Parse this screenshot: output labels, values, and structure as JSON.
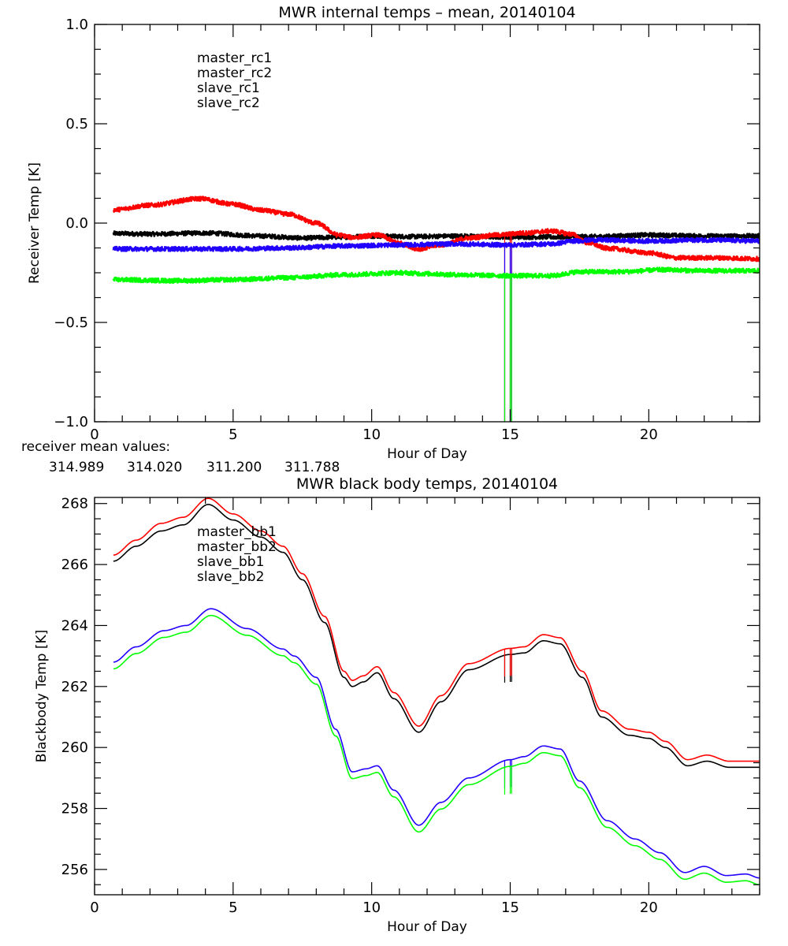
{
  "chart_data": [
    {
      "type": "line",
      "title": "MWR internal temps – mean, 20140104",
      "xlabel": "Hour of Day",
      "ylabel": "Receiver Temp [K]",
      "xlim": [
        0,
        24
      ],
      "ylim": [
        -1.0,
        1.0
      ],
      "xticks": [
        0,
        5,
        10,
        15,
        20
      ],
      "xtick_labels": [
        "0",
        "5",
        "10",
        "15",
        "20"
      ],
      "yticks": [
        1.0,
        0.5,
        0.0,
        -0.5,
        -1.0
      ],
      "ytick_labels": [
        "1.0",
        "0.5",
        "0.0",
        "−0.5",
        "−1.0"
      ],
      "grid": false,
      "legend_position": "top-left",
      "noisy": true,
      "series": [
        {
          "name": "master_rc1",
          "color": "#000000",
          "x": [
            0.68,
            2,
            4,
            6,
            7.5,
            9,
            10,
            11.5,
            13,
            15,
            16.5,
            18,
            20,
            22,
            24
          ],
          "y": [
            -0.052,
            -0.055,
            -0.05,
            -0.065,
            -0.075,
            -0.07,
            -0.065,
            -0.068,
            -0.065,
            -0.07,
            -0.07,
            -0.068,
            -0.06,
            -0.065,
            -0.065
          ]
        },
        {
          "name": "master_rc2",
          "color": "#ff0000",
          "x": [
            0.68,
            2,
            3.8,
            5,
            6,
            7,
            8,
            8.8,
            9.3,
            10.2,
            11,
            11.7,
            12.5,
            13.5,
            14.5,
            15.5,
            16.5,
            17.2,
            17.8,
            18.5,
            20,
            21,
            22.5,
            24
          ],
          "y": [
            0.067,
            0.09,
            0.123,
            0.095,
            0.065,
            0.045,
            0.0,
            -0.06,
            -0.072,
            -0.06,
            -0.1,
            -0.13,
            -0.11,
            -0.075,
            -0.06,
            -0.05,
            -0.04,
            -0.055,
            -0.1,
            -0.127,
            -0.15,
            -0.175,
            -0.175,
            -0.18
          ]
        },
        {
          "name": "slave_rc1",
          "color": "#2200ff",
          "x": [
            0.68,
            3,
            5,
            7,
            9,
            11,
            13,
            15,
            16.5,
            17.3,
            18,
            20,
            22,
            24
          ],
          "y": [
            -0.13,
            -0.13,
            -0.13,
            -0.125,
            -0.115,
            -0.11,
            -0.105,
            -0.11,
            -0.105,
            -0.09,
            -0.085,
            -0.09,
            -0.085,
            -0.09
          ]
        },
        {
          "name": "slave_rc2",
          "color": "#00ff00",
          "x": [
            0.68,
            3,
            5,
            7,
            9,
            11,
            12,
            13,
            15,
            16.5,
            17.5,
            19,
            20.5,
            22,
            24
          ],
          "y": [
            -0.285,
            -0.29,
            -0.285,
            -0.275,
            -0.26,
            -0.25,
            -0.255,
            -0.26,
            -0.265,
            -0.265,
            -0.245,
            -0.245,
            -0.235,
            -0.24,
            -0.24
          ]
        }
      ],
      "spikes": [
        {
          "x": 14.8,
          "series": [
            "master_rc2",
            "slave_rc1",
            "slave_rc2"
          ],
          "y_min": -1.0
        },
        {
          "x": 15.0,
          "series": [
            "master_rc2",
            "slave_rc1",
            "slave_rc2"
          ],
          "y_min": -1.0
        },
        {
          "x": 15.05,
          "series": [
            "master_rc2",
            "slave_rc1",
            "slave_rc2"
          ],
          "y_min": -1.0
        }
      ],
      "annotation": {
        "label": "receiver mean values:",
        "values": [
          {
            "text": "314.989",
            "color": "#000000"
          },
          {
            "text": "314.020",
            "color": "#ff0000"
          },
          {
            "text": "311.200",
            "color": "#2200ff"
          },
          {
            "text": "311.788",
            "color": "#00ff00"
          }
        ]
      }
    },
    {
      "type": "line",
      "title": "MWR black body temps, 20140104",
      "xlabel": "Hour of Day",
      "ylabel": "Blackbody Temp [K]",
      "xlim": [
        0,
        24
      ],
      "ylim": [
        255.17,
        268.2
      ],
      "xticks": [
        0,
        5,
        10,
        15,
        20
      ],
      "xtick_labels": [
        "0",
        "5",
        "10",
        "15",
        "20"
      ],
      "yticks": [
        268,
        266,
        264,
        262,
        260,
        258,
        256
      ],
      "ytick_labels": [
        "268",
        "266",
        "264",
        "262",
        "260",
        "258",
        "256"
      ],
      "grid": false,
      "legend_position": "top-left",
      "noisy": false,
      "series": [
        {
          "name": "master_bb1",
          "color": "#000000",
          "x": [
            0.68,
            1.5,
            2.4,
            3.2,
            4.1,
            5.0,
            6.0,
            6.8,
            7.5,
            8.3,
            9.0,
            9.3,
            9.7,
            10.2,
            10.8,
            11.7,
            12.5,
            13.5,
            15.0,
            15.5,
            16.2,
            16.8,
            17.6,
            18.3,
            19.3,
            20.0,
            20.6,
            21.4,
            22.1,
            22.9,
            24.0
          ],
          "y": [
            266.11,
            266.6,
            267.1,
            267.3,
            267.97,
            267.46,
            266.9,
            266.4,
            265.5,
            264.1,
            262.3,
            262.0,
            262.15,
            262.45,
            261.6,
            260.5,
            261.5,
            262.55,
            263.05,
            263.1,
            263.5,
            263.4,
            262.3,
            261.0,
            260.4,
            260.3,
            260.0,
            259.4,
            259.55,
            259.35,
            259.35
          ]
        },
        {
          "name": "master_bb2",
          "color": "#ff0000",
          "x": [
            0.68,
            1.5,
            2.4,
            3.2,
            4.1,
            5.0,
            6.0,
            6.8,
            7.5,
            8.3,
            9.0,
            9.3,
            9.7,
            10.2,
            10.8,
            11.7,
            12.5,
            13.5,
            15.0,
            15.5,
            16.2,
            16.8,
            17.6,
            18.3,
            19.3,
            20.0,
            20.6,
            21.4,
            22.1,
            22.9,
            24.0
          ],
          "y": [
            266.31,
            266.8,
            267.35,
            267.55,
            268.17,
            267.66,
            267.1,
            266.6,
            265.7,
            264.3,
            262.5,
            262.2,
            262.35,
            262.65,
            261.8,
            260.7,
            261.7,
            262.75,
            263.25,
            263.3,
            263.7,
            263.6,
            262.5,
            261.2,
            260.6,
            260.5,
            260.2,
            259.6,
            259.75,
            259.55,
            259.55
          ]
        },
        {
          "name": "slave_bb1",
          "color": "#2200ff",
          "x": [
            0.68,
            1.5,
            2.5,
            3.3,
            4.2,
            5.5,
            6.8,
            7.2,
            8.0,
            8.7,
            9.3,
            9.8,
            10.2,
            10.8,
            11.7,
            12.5,
            13.5,
            15.0,
            15.5,
            16.2,
            16.8,
            17.5,
            18.5,
            19.5,
            20.4,
            21.3,
            22.0,
            22.8,
            23.5,
            24.0
          ],
          "y": [
            262.8,
            263.3,
            263.83,
            264.0,
            264.55,
            263.9,
            263.23,
            263.0,
            262.3,
            260.6,
            259.2,
            259.3,
            259.4,
            258.6,
            257.45,
            258.2,
            259.0,
            259.6,
            259.7,
            260.05,
            259.95,
            258.9,
            257.6,
            257.0,
            256.55,
            255.9,
            256.1,
            255.8,
            255.85,
            255.72
          ]
        },
        {
          "name": "slave_bb2",
          "color": "#00ff00",
          "x": [
            0.68,
            1.5,
            2.5,
            3.3,
            4.2,
            5.5,
            6.8,
            7.2,
            8.0,
            8.7,
            9.3,
            9.8,
            10.2,
            10.8,
            11.7,
            12.5,
            13.5,
            15.0,
            15.5,
            16.2,
            16.8,
            17.5,
            18.5,
            19.5,
            20.4,
            21.3,
            22.0,
            22.8,
            23.5,
            24.0
          ],
          "y": [
            262.58,
            263.08,
            263.61,
            263.78,
            264.33,
            263.68,
            263.01,
            262.78,
            262.08,
            260.38,
            258.98,
            259.08,
            259.18,
            258.38,
            257.23,
            257.98,
            258.78,
            259.38,
            259.48,
            259.83,
            259.73,
            258.68,
            257.38,
            256.78,
            256.33,
            255.68,
            255.88,
            255.58,
            255.63,
            255.5
          ]
        }
      ],
      "spikes": [
        {
          "x": 14.8,
          "series": [
            "master_bb1",
            "master_bb2",
            "slave_bb1",
            "slave_bb2"
          ],
          "depth": 0.9
        },
        {
          "x": 15.0,
          "series": [
            "master_bb1",
            "master_bb2",
            "slave_bb1",
            "slave_bb2"
          ],
          "depth": 0.9
        },
        {
          "x": 15.05,
          "series": [
            "master_bb1",
            "master_bb2",
            "slave_bb1",
            "slave_bb2"
          ],
          "depth": 0.9
        }
      ]
    }
  ]
}
